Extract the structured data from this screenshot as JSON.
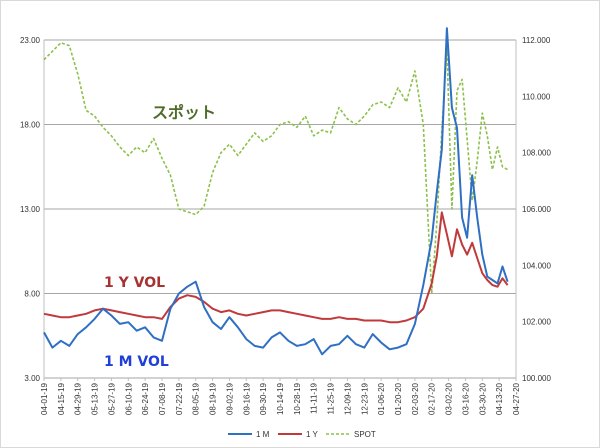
{
  "chart_data": {
    "type": "line",
    "title": "",
    "left_axis": {
      "min": 3,
      "max": 23,
      "ticks": [
        "3.00",
        "8.00",
        "13.00",
        "18.00",
        "23.00"
      ]
    },
    "right_axis": {
      "min": 100,
      "max": 112,
      "ticks": [
        "100.000",
        "102.000",
        "104.000",
        "106.000",
        "108.000",
        "110.000",
        "112.000"
      ]
    },
    "x_ticks": [
      "04-01-19",
      "04-15-19",
      "04-29-19",
      "05-13-19",
      "05-27-19",
      "06-10-19",
      "06-24-19",
      "07-08-19",
      "07-22-19",
      "08-05-19",
      "08-19-19",
      "09-02-19",
      "09-16-19",
      "09-30-19",
      "10-14-19",
      "10-28-19",
      "11-11-19",
      "11-25-19",
      "12-09-19",
      "12-23-19",
      "01-06-20",
      "01-20-20",
      "02-03-20",
      "02-17-20",
      "03-02-20",
      "03-16-20",
      "03-30-20",
      "04-13-20",
      "04-27-20"
    ],
    "grid": "horizontal",
    "annotations": {
      "spot": "スポット",
      "vol_1y": "1 Y VOL",
      "vol_1m": "1 M VOL"
    },
    "legend": {
      "position": "bottom",
      "entries": [
        "1 M",
        "1 Y",
        "SPOT"
      ]
    },
    "colors": {
      "m1": "#2f6fc4",
      "y1": "#c0393b",
      "spot": "#8cc04a",
      "grid": "#a6a6a6",
      "anno_spot": "#4e6b2a",
      "anno_1y": "#a83232",
      "anno_1m": "#1f3fd6"
    },
    "series": [
      {
        "name": "1 M",
        "axis": "left",
        "x": [
          0,
          0.5,
          1,
          1.5,
          2,
          2.5,
          3,
          3.5,
          4,
          4.5,
          5,
          5.5,
          6,
          6.5,
          7,
          7.5,
          8,
          8.5,
          9,
          9.5,
          10,
          10.5,
          11,
          11.5,
          12,
          12.5,
          13,
          13.5,
          14,
          14.5,
          15,
          15.5,
          16,
          16.5,
          17,
          17.5,
          18,
          18.5,
          19,
          19.5,
          20,
          20.5,
          21,
          21.5,
          22,
          22.5,
          23,
          23.3,
          23.6,
          23.9,
          24.2,
          24.5,
          24.8,
          25.1,
          25.4,
          25.7,
          26,
          26.3,
          26.6,
          26.9,
          27.2,
          27.5
        ],
        "values": [
          5.7,
          4.8,
          5.2,
          4.9,
          5.6,
          6.0,
          6.5,
          7.1,
          6.7,
          6.2,
          6.3,
          5.8,
          6.0,
          5.4,
          5.2,
          7.1,
          8.0,
          8.4,
          8.7,
          7.2,
          6.3,
          5.9,
          6.6,
          6.0,
          5.3,
          4.9,
          4.8,
          5.4,
          5.7,
          5.2,
          4.9,
          5.0,
          5.3,
          4.4,
          4.9,
          5.0,
          5.5,
          5.0,
          4.8,
          5.6,
          5.1,
          4.7,
          4.8,
          5.0,
          6.2,
          8.5,
          11.2,
          14.0,
          16.5,
          23.7,
          19.0,
          17.8,
          12.5,
          11.3,
          15.0,
          12.5,
          10.3,
          9.0,
          8.8,
          8.6,
          9.6,
          8.7
        ]
      },
      {
        "name": "1 Y",
        "axis": "left",
        "x": [
          0,
          0.5,
          1,
          1.5,
          2,
          2.5,
          3,
          3.5,
          4,
          4.5,
          5,
          5.5,
          6,
          6.5,
          7,
          7.5,
          8,
          8.5,
          9,
          9.5,
          10,
          10.5,
          11,
          11.5,
          12,
          12.5,
          13,
          13.5,
          14,
          14.5,
          15,
          15.5,
          16,
          16.5,
          17,
          17.5,
          18,
          18.5,
          19,
          19.5,
          20,
          20.5,
          21,
          21.5,
          22,
          22.5,
          23,
          23.3,
          23.6,
          23.9,
          24.2,
          24.5,
          24.8,
          25.1,
          25.4,
          25.7,
          26,
          26.3,
          26.6,
          26.9,
          27.2,
          27.5
        ],
        "values": [
          6.8,
          6.7,
          6.6,
          6.6,
          6.7,
          6.8,
          7.0,
          7.1,
          7.0,
          6.9,
          6.8,
          6.7,
          6.6,
          6.6,
          6.5,
          7.2,
          7.7,
          7.9,
          7.8,
          7.5,
          7.1,
          6.9,
          7.0,
          6.8,
          6.7,
          6.8,
          6.9,
          7.0,
          7.0,
          6.9,
          6.8,
          6.7,
          6.6,
          6.5,
          6.5,
          6.6,
          6.5,
          6.5,
          6.4,
          6.4,
          6.4,
          6.3,
          6.3,
          6.4,
          6.6,
          7.1,
          8.6,
          10.2,
          12.8,
          11.5,
          10.2,
          11.8,
          10.9,
          10.3,
          11.0,
          10.1,
          9.2,
          8.8,
          8.5,
          8.4,
          8.9,
          8.5
        ]
      },
      {
        "name": "SPOT",
        "axis": "right",
        "x": [
          0,
          0.5,
          1,
          1.5,
          2,
          2.5,
          3,
          3.5,
          4,
          4.5,
          5,
          5.5,
          6,
          6.5,
          7,
          7.5,
          8,
          8.5,
          9,
          9.5,
          10,
          10.5,
          11,
          11.5,
          12,
          12.5,
          13,
          13.5,
          14,
          14.5,
          15,
          15.5,
          16,
          16.5,
          17,
          17.5,
          18,
          18.5,
          19,
          19.5,
          20,
          20.5,
          21,
          21.5,
          22,
          22.5,
          23,
          23.3,
          23.6,
          23.9,
          24.2,
          24.5,
          24.8,
          25.1,
          25.4,
          25.7,
          26,
          26.3,
          26.6,
          26.9,
          27.2,
          27.5
        ],
        "values": [
          111.3,
          111.6,
          111.9,
          111.8,
          110.8,
          109.5,
          109.3,
          108.9,
          108.6,
          108.2,
          107.9,
          108.2,
          108.0,
          108.5,
          107.8,
          107.2,
          106.0,
          105.9,
          105.8,
          106.1,
          107.3,
          108.0,
          108.3,
          107.9,
          108.3,
          108.7,
          108.4,
          108.6,
          109.0,
          109.1,
          108.9,
          109.3,
          108.6,
          108.8,
          108.7,
          109.6,
          109.2,
          109.0,
          109.3,
          109.7,
          109.8,
          109.6,
          110.3,
          109.8,
          110.9,
          109.0,
          103.0,
          105.5,
          108.8,
          111.7,
          106.0,
          110.2,
          110.6,
          108.5,
          106.3,
          107.7,
          109.4,
          108.6,
          107.4,
          108.2,
          107.5,
          107.4
        ]
      }
    ]
  }
}
